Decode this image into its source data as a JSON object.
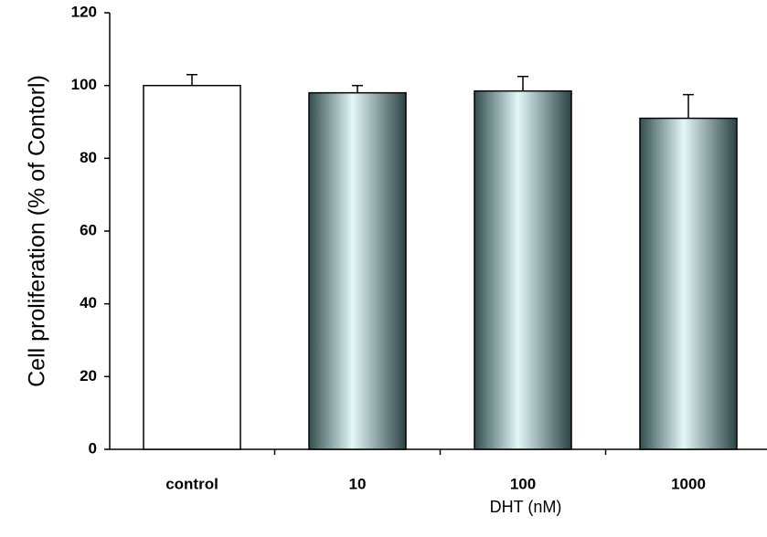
{
  "chart_data": {
    "type": "bar",
    "categories": [
      "control",
      "10",
      "100",
      "1000"
    ],
    "values": [
      100,
      98,
      98.5,
      91
    ],
    "errors": [
      3,
      2,
      4,
      6.5
    ],
    "colors": [
      "#ffffff",
      "#8fdede",
      "#8fdede",
      "#8fdede"
    ],
    "ylim": [
      0,
      120
    ],
    "yticks": [
      0,
      20,
      40,
      60,
      80,
      100,
      120
    ],
    "y_label": "Cell proliferation (% of Contorl)",
    "x_label": "DHT (nM)"
  }
}
